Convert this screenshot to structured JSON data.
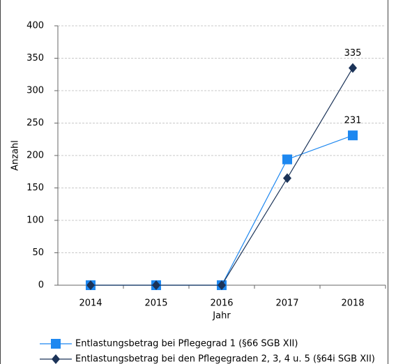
{
  "chart_data": {
    "type": "line",
    "x_label": "Jahr",
    "y_label": "Anzahl",
    "categories": [
      "2014",
      "2015",
      "2016",
      "2017",
      "2018"
    ],
    "series": [
      {
        "name": "Entlastungsbetrag bei Pflegegrad 1 (§66 SGB XII)",
        "color": "#1e88f0",
        "marker": "square",
        "values": [
          0,
          0,
          0,
          194,
          231
        ],
        "labeled_points": [
          4
        ]
      },
      {
        "name": "Entlastungsbetrag bei den Pflegegraden 2, 3, 4 u. 5 (§64i SGB XII)",
        "color": "#1b3358",
        "marker": "diamond",
        "values": [
          0,
          0,
          0,
          165,
          335
        ],
        "labeled_points": [
          4
        ]
      }
    ],
    "ylim": [
      0,
      400
    ],
    "yticks": [
      0,
      50,
      100,
      150,
      200,
      250,
      300,
      350,
      400
    ],
    "grid": true
  }
}
